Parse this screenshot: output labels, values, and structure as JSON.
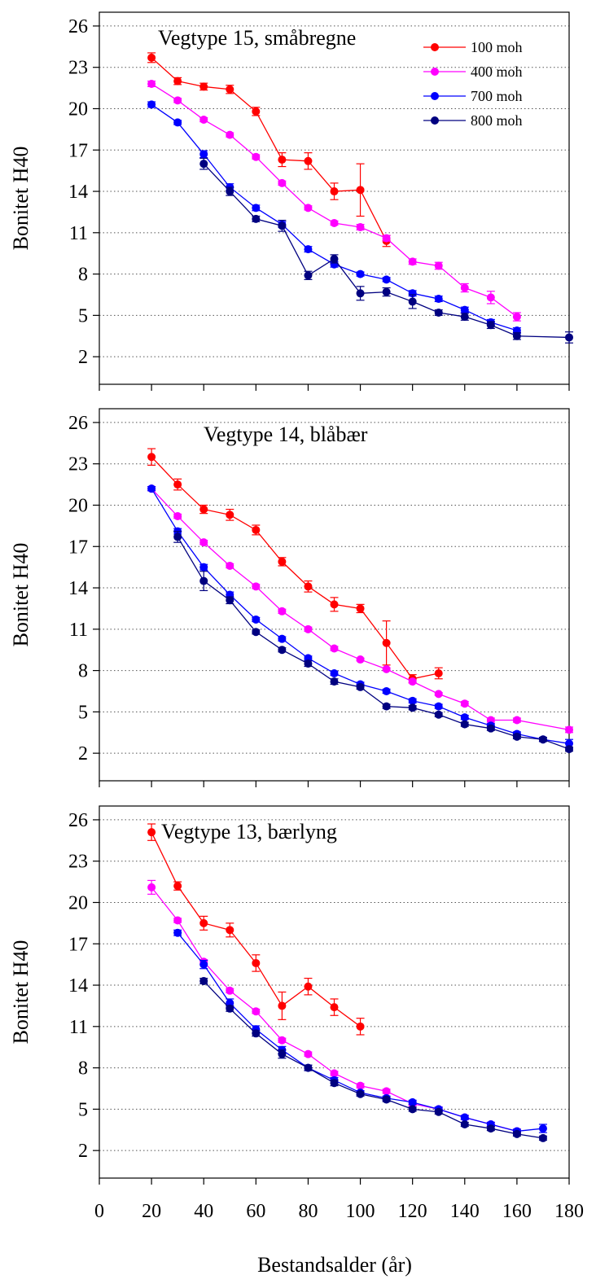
{
  "figure": {
    "xlabel": "Bestandsalder (år)",
    "x_ticks": [
      "0",
      "20",
      "40",
      "60",
      "80",
      "100",
      "120",
      "140",
      "160",
      "180"
    ]
  },
  "colors": {
    "100 moh": "#ff0000",
    "400 moh": "#ff00ff",
    "700 moh": "#0000ff",
    "800 moh": "#000080"
  },
  "chart_data": [
    {
      "type": "line",
      "title": "Vegtype 15, småbregne",
      "ylabel": "Bonitet H40",
      "xlim": [
        0,
        180
      ],
      "ylim": [
        0,
        27
      ],
      "y_ticks": [
        2,
        5,
        8,
        11,
        14,
        17,
        20,
        23,
        26
      ],
      "grid": "horizontal dotted",
      "legend": "top-right",
      "series": [
        {
          "name": "100 moh",
          "x": [
            20,
            30,
            40,
            50,
            60,
            70,
            80,
            90,
            100,
            110
          ],
          "y": [
            23.7,
            22.0,
            21.6,
            21.4,
            19.8,
            16.3,
            16.2,
            14.0,
            14.1,
            10.4
          ],
          "err": [
            0.35,
            0.25,
            0.25,
            0.3,
            0.3,
            0.5,
            0.6,
            0.6,
            1.9,
            0.4
          ]
        },
        {
          "name": "400 moh",
          "x": [
            20,
            30,
            40,
            50,
            60,
            70,
            80,
            90,
            100,
            110,
            120,
            130,
            140,
            150,
            160
          ],
          "y": [
            21.8,
            20.6,
            19.2,
            18.1,
            16.5,
            14.6,
            12.8,
            11.7,
            11.4,
            10.6,
            8.9,
            8.6,
            7.0,
            6.3,
            4.9
          ],
          "err": [
            0.2,
            0.15,
            0.15,
            0.15,
            0.15,
            0.15,
            0.15,
            0.15,
            0.2,
            0.2,
            0.2,
            0.25,
            0.3,
            0.45,
            0.3
          ]
        },
        {
          "name": "700 moh",
          "x": [
            20,
            30,
            40,
            50,
            60,
            70,
            80,
            90,
            100,
            110,
            120,
            130,
            140,
            150,
            160
          ],
          "y": [
            20.3,
            19.0,
            16.7,
            14.3,
            12.8,
            11.6,
            9.8,
            8.7,
            8.0,
            7.6,
            6.6,
            6.2,
            5.4,
            4.5,
            3.9
          ],
          "err": [
            0.2,
            0.15,
            0.25,
            0.25,
            0.2,
            0.2,
            0.2,
            0.2,
            0.15,
            0.15,
            0.2,
            0.2,
            0.2,
            0.2,
            0.2
          ]
        },
        {
          "name": "800 moh",
          "x": [
            20,
            30,
            40,
            50,
            60,
            70,
            80,
            90,
            100,
            110,
            120,
            130,
            140,
            150,
            160,
            180
          ],
          "y": [
            null,
            null,
            16.0,
            14.0,
            12.0,
            11.5,
            7.9,
            9.1,
            6.6,
            6.7,
            6.0,
            5.2,
            4.9,
            4.3,
            3.5,
            3.4
          ],
          "err": [
            0,
            0,
            0.4,
            0.3,
            0.2,
            0.4,
            0.3,
            0.3,
            0.5,
            0.3,
            0.5,
            0.2,
            0.25,
            0.25,
            0.25,
            0.4
          ]
        }
      ]
    },
    {
      "type": "line",
      "title": "Vegtype 14, blåbær",
      "ylabel": "Bonitet H40",
      "xlim": [
        0,
        180
      ],
      "ylim": [
        0,
        27
      ],
      "y_ticks": [
        2,
        5,
        8,
        11,
        14,
        17,
        20,
        23,
        26
      ],
      "grid": "horizontal dotted",
      "legend": "",
      "series": [
        {
          "name": "100 moh",
          "x": [
            20,
            30,
            40,
            50,
            60,
            70,
            80,
            90,
            100,
            110,
            120,
            130
          ],
          "y": [
            23.5,
            21.5,
            19.7,
            19.3,
            18.2,
            15.9,
            14.1,
            12.8,
            12.5,
            10.0,
            7.4,
            7.8
          ],
          "err": [
            0.6,
            0.4,
            0.3,
            0.4,
            0.35,
            0.3,
            0.4,
            0.5,
            0.3,
            1.6,
            0.3,
            0.4
          ]
        },
        {
          "name": "400 moh",
          "x": [
            20,
            30,
            40,
            50,
            60,
            70,
            80,
            90,
            100,
            110,
            120,
            130,
            140,
            150,
            160,
            180
          ],
          "y": [
            21.2,
            19.2,
            17.3,
            15.6,
            14.1,
            12.3,
            11.0,
            9.6,
            8.8,
            8.1,
            7.2,
            6.3,
            5.6,
            4.4,
            4.4,
            3.7
          ],
          "err": [
            0.15,
            0.15,
            0.15,
            0.15,
            0.15,
            0.15,
            0.15,
            0.15,
            0.1,
            0.1,
            0.1,
            0.1,
            0.15,
            0.15,
            0.15,
            0.2
          ]
        },
        {
          "name": "700 moh",
          "x": [
            20,
            30,
            40,
            50,
            60,
            70,
            80,
            90,
            100,
            110,
            120,
            130,
            140,
            150,
            160,
            170,
            180
          ],
          "y": [
            21.2,
            18.1,
            15.5,
            13.5,
            11.7,
            10.3,
            8.9,
            7.8,
            7.0,
            6.5,
            5.8,
            5.4,
            4.6,
            4.0,
            3.4,
            3.0,
            2.7
          ],
          "err": [
            0.15,
            0.2,
            0.2,
            0.2,
            0.15,
            0.15,
            0.15,
            0.15,
            0.15,
            0.15,
            0.15,
            0.15,
            0.15,
            0.15,
            0.15,
            0.15,
            0.3
          ]
        },
        {
          "name": "800 moh",
          "x": [
            20,
            30,
            40,
            50,
            60,
            70,
            80,
            90,
            100,
            110,
            120,
            130,
            140,
            150,
            160,
            170,
            180
          ],
          "y": [
            null,
            17.7,
            14.5,
            13.1,
            10.8,
            9.5,
            8.5,
            7.2,
            6.8,
            5.4,
            5.3,
            4.8,
            4.1,
            3.8,
            3.2,
            3.0,
            2.3
          ],
          "err": [
            0,
            0.4,
            0.7,
            0.25,
            0.15,
            0.15,
            0.2,
            0.2,
            0.15,
            0.15,
            0.15,
            0.15,
            0.15,
            0.15,
            0.15,
            0.15,
            0.15
          ]
        }
      ]
    },
    {
      "type": "line",
      "title": "Vegtype 13, bærlyng",
      "ylabel": "Bonitet H40",
      "xlim": [
        0,
        180
      ],
      "ylim": [
        0,
        27
      ],
      "y_ticks": [
        2,
        5,
        8,
        11,
        14,
        17,
        20,
        23,
        26
      ],
      "grid": "horizontal dotted",
      "legend": "",
      "series": [
        {
          "name": "100 moh",
          "x": [
            20,
            30,
            40,
            50,
            60,
            70,
            80,
            90,
            100
          ],
          "y": [
            25.1,
            21.2,
            18.5,
            18.0,
            15.6,
            12.5,
            13.9,
            12.4,
            11.0
          ],
          "err": [
            0.6,
            0.3,
            0.5,
            0.5,
            0.6,
            1.0,
            0.6,
            0.6,
            0.6
          ]
        },
        {
          "name": "400 moh",
          "x": [
            20,
            30,
            40,
            50,
            60,
            70,
            80,
            90,
            100,
            110,
            120,
            130,
            140,
            150,
            160
          ],
          "y": [
            21.1,
            18.7,
            15.7,
            13.6,
            12.1,
            10.0,
            9.0,
            7.6,
            6.7,
            6.3,
            5.4,
            5.0,
            4.4,
            3.9,
            3.4
          ],
          "err": [
            0.5,
            0.15,
            0.15,
            0.15,
            0.15,
            0.15,
            0.15,
            0.15,
            0.15,
            0.15,
            0.15,
            0.15,
            0.15,
            0.15,
            0.15
          ]
        },
        {
          "name": "700 moh",
          "x": [
            30,
            40,
            50,
            60,
            70,
            80,
            90,
            100,
            110,
            120,
            130,
            140,
            150,
            160,
            170
          ],
          "y": [
            17.8,
            15.5,
            12.7,
            10.8,
            9.3,
            8.0,
            7.1,
            6.2,
            5.8,
            5.5,
            5.0,
            4.4,
            3.9,
            3.4,
            3.6
          ],
          "err": [
            0.2,
            0.3,
            0.3,
            0.25,
            0.25,
            0.2,
            0.2,
            0.15,
            0.15,
            0.15,
            0.15,
            0.15,
            0.15,
            0.15,
            0.3
          ]
        },
        {
          "name": "800 moh",
          "x": [
            40,
            50,
            60,
            70,
            80,
            90,
            100,
            110,
            120,
            130,
            140,
            150,
            160,
            170
          ],
          "y": [
            14.3,
            12.3,
            10.5,
            9.0,
            8.0,
            6.9,
            6.1,
            5.7,
            5.0,
            4.8,
            3.9,
            3.6,
            3.2,
            2.9
          ],
          "err": [
            0.2,
            0.2,
            0.2,
            0.3,
            0.2,
            0.2,
            0.15,
            0.15,
            0.15,
            0.15,
            0.15,
            0.15,
            0.15,
            0.15
          ]
        }
      ]
    }
  ]
}
